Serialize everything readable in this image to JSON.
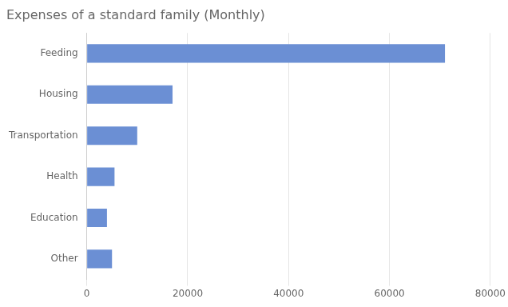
{
  "chart_data": {
    "type": "bar",
    "orientation": "horizontal",
    "title": "Expenses of a standard family (Monthly)",
    "categories": [
      "Other",
      "Education",
      "Health",
      "Transportation",
      "Housing",
      "Feeding"
    ],
    "values": [
      5000,
      4000,
      5500,
      10000,
      17000,
      71000
    ],
    "color": "#6B8FD4",
    "xlim": [
      0,
      80000
    ],
    "xticks": [
      0,
      20000,
      40000,
      60000,
      80000
    ],
    "grid": true
  }
}
